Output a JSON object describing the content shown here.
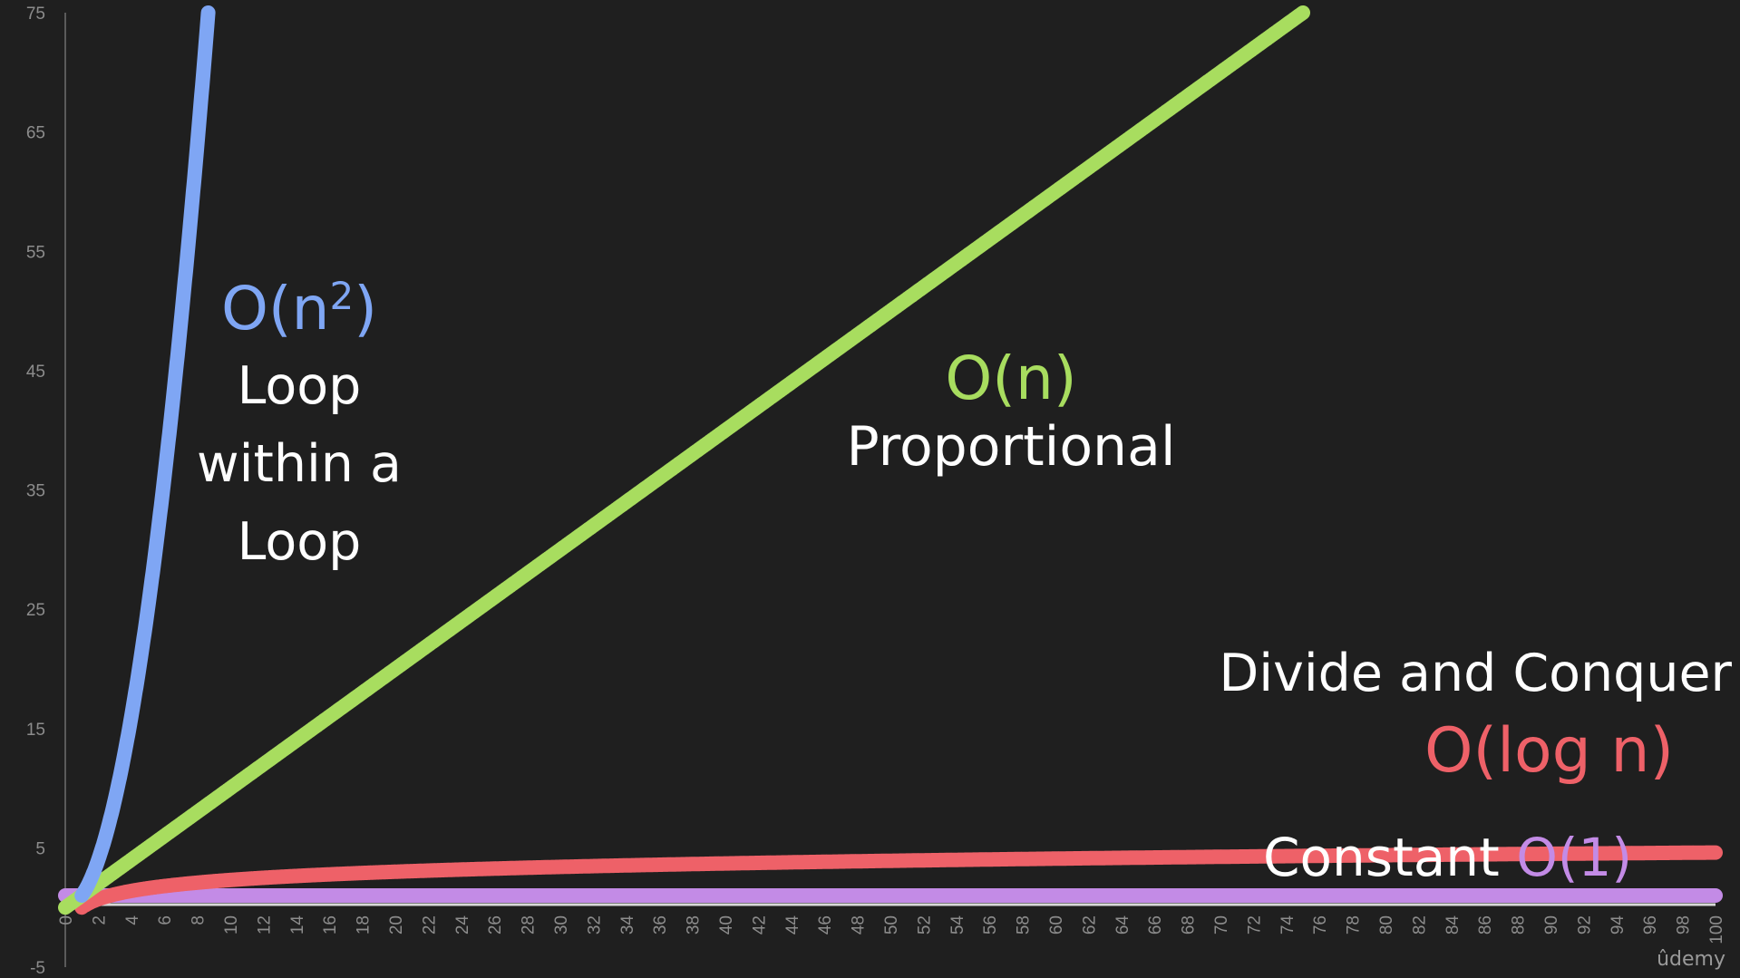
{
  "chart_data": {
    "type": "line",
    "x": {
      "min": 0,
      "max": 100,
      "tick_step": 2
    },
    "ylim": [
      -5,
      75
    ],
    "y_ticks": [
      75,
      65,
      55,
      45,
      35,
      25,
      15,
      5,
      -5
    ],
    "grid": false,
    "series": [
      {
        "name": "O(n²)",
        "formula": "n^2",
        "x": [
          1,
          2,
          3,
          4,
          5,
          6,
          7,
          8,
          8.7
        ],
        "values": [
          1,
          4,
          9,
          16,
          25,
          36,
          49,
          64,
          75
        ],
        "color": "#7fa6f4"
      },
      {
        "name": "O(n)",
        "formula": "n",
        "x": [
          0,
          10,
          20,
          30,
          40,
          50,
          60,
          70,
          75
        ],
        "values": [
          0,
          10,
          20,
          30,
          40,
          50,
          60,
          70,
          75
        ],
        "color": "#a8dd5f"
      },
      {
        "name": "O(log n)",
        "formula": "ln(n)",
        "x": [
          1,
          2,
          5,
          10,
          20,
          30,
          50,
          70,
          100
        ],
        "values": [
          0,
          0.69,
          1.61,
          2.3,
          3.0,
          3.4,
          3.91,
          4.25,
          4.61
        ],
        "color": "#ee6168"
      },
      {
        "name": "O(1)",
        "formula": "1",
        "x": [
          0,
          100
        ],
        "values": [
          1,
          1
        ],
        "color": "#c38be6"
      }
    ]
  },
  "annotations": {
    "n2": {
      "big": "O(n",
      "sup": "2",
      "close": ")",
      "lines": [
        "Loop",
        "within a",
        "Loop"
      ]
    },
    "n": {
      "big": "O(n)",
      "desc": "Proportional"
    },
    "log": {
      "desc": "Divide and Conquer",
      "big": "O(log n)"
    },
    "const": {
      "desc": "Constant ",
      "big": "O(1)"
    }
  },
  "brand": {
    "logo_text": "ûdemy"
  }
}
